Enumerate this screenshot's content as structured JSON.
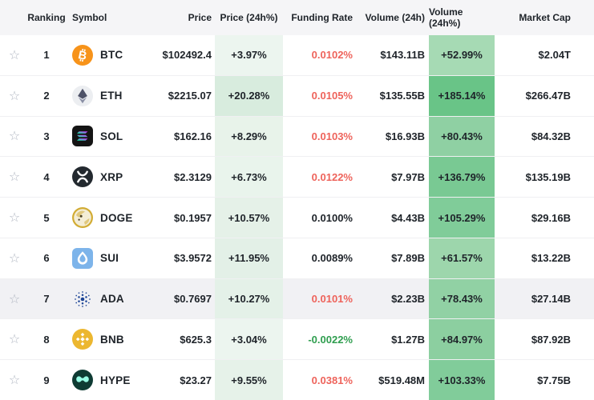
{
  "table": {
    "columns": [
      {
        "key": "favorite",
        "label": ""
      },
      {
        "key": "ranking",
        "label": "Ranking"
      },
      {
        "key": "symbol",
        "label": "Symbol"
      },
      {
        "key": "price",
        "label": "Price"
      },
      {
        "key": "price_change",
        "label": "Price (24h%)"
      },
      {
        "key": "funding_rate",
        "label": "Funding Rate"
      },
      {
        "key": "volume",
        "label": "Volume (24h)"
      },
      {
        "key": "volume_change",
        "label": "Volume (24h%)"
      },
      {
        "key": "market_cap",
        "label": "Market Cap"
      }
    ],
    "rows": [
      {
        "ranking": "1",
        "symbol": "BTC",
        "icon": "btc",
        "price": "$102492.4",
        "price_change": "+3.97%",
        "price_change_bg": "#ecf5ef",
        "funding_rate": "0.0102%",
        "funding_color": "#ee635b",
        "volume": "$143.11B",
        "volume_change": "+52.99%",
        "volume_change_bg": "#a6dab4",
        "market_cap": "$2.04T",
        "row_bg": "#ffffff"
      },
      {
        "ranking": "2",
        "symbol": "ETH",
        "icon": "eth",
        "price": "$2215.07",
        "price_change": "+20.28%",
        "price_change_bg": "#d8ecde",
        "funding_rate": "0.0105%",
        "funding_color": "#ee635b",
        "volume": "$135.55B",
        "volume_change": "+185.14%",
        "volume_change_bg": "#69c487",
        "market_cap": "$266.47B",
        "row_bg": "#ffffff"
      },
      {
        "ranking": "3",
        "symbol": "SOL",
        "icon": "sol",
        "price": "$162.16",
        "price_change": "+8.29%",
        "price_change_bg": "#e8f3ea",
        "funding_rate": "0.0103%",
        "funding_color": "#ee635b",
        "volume": "$16.93B",
        "volume_change": "+80.43%",
        "volume_change_bg": "#8fd0a3",
        "market_cap": "$84.32B",
        "row_bg": "#ffffff"
      },
      {
        "ranking": "4",
        "symbol": "XRP",
        "icon": "xrp",
        "price": "$2.3129",
        "price_change": "+6.73%",
        "price_change_bg": "#e9f4ec",
        "funding_rate": "0.0122%",
        "funding_color": "#ee635b",
        "volume": "$7.97B",
        "volume_change": "+136.79%",
        "volume_change_bg": "#79c993",
        "market_cap": "$135.19B",
        "row_bg": "#ffffff"
      },
      {
        "ranking": "5",
        "symbol": "DOGE",
        "icon": "doge",
        "price": "$0.1957",
        "price_change": "+10.57%",
        "price_change_bg": "#e5f1e8",
        "funding_rate": "0.0100%",
        "funding_color": "#1e2329",
        "volume": "$4.43B",
        "volume_change": "+105.29%",
        "volume_change_bg": "#80cc99",
        "market_cap": "$29.16B",
        "row_bg": "#ffffff"
      },
      {
        "ranking": "6",
        "symbol": "SUI",
        "icon": "sui",
        "price": "$3.9572",
        "price_change": "+11.95%",
        "price_change_bg": "#e3f0e7",
        "funding_rate": "0.0089%",
        "funding_color": "#1e2329",
        "volume": "$7.89B",
        "volume_change": "+61.57%",
        "volume_change_bg": "#9dd6ac",
        "market_cap": "$13.22B",
        "row_bg": "#ffffff"
      },
      {
        "ranking": "7",
        "symbol": "ADA",
        "icon": "ada",
        "price": "$0.7697",
        "price_change": "+10.27%",
        "price_change_bg": "#e4f1e8",
        "funding_rate": "0.0101%",
        "funding_color": "#ee635b",
        "volume": "$2.23B",
        "volume_change": "+78.43%",
        "volume_change_bg": "#91d1a4",
        "market_cap": "$27.14B",
        "row_bg": "#f1f1f4"
      },
      {
        "ranking": "8",
        "symbol": "BNB",
        "icon": "bnb",
        "price": "$625.3",
        "price_change": "+3.04%",
        "price_change_bg": "#ecf5ef",
        "funding_rate": "-0.0022%",
        "funding_color": "#2f9e4f",
        "volume": "$1.27B",
        "volume_change": "+84.97%",
        "volume_change_bg": "#8ccfa0",
        "market_cap": "$87.92B",
        "row_bg": "#ffffff"
      },
      {
        "ranking": "9",
        "symbol": "HYPE",
        "icon": "hype",
        "price": "$23.27",
        "price_change": "+9.55%",
        "price_change_bg": "#e6f2e9",
        "funding_rate": "0.0381%",
        "funding_color": "#ee635b",
        "volume": "$519.48M",
        "volume_change": "+103.33%",
        "volume_change_bg": "#81cc9a",
        "market_cap": "$7.75B",
        "row_bg": "#ffffff"
      }
    ]
  },
  "icons": {
    "favorite_star": "☆"
  },
  "colors": {
    "header_bg": "#f5f5f7",
    "row_bg": "#ffffff",
    "row_highlight_bg": "#f1f1f4",
    "divider": "#f0f0f2",
    "text": "#1e2329",
    "negative_red": "#ee635b",
    "positive_green": "#2f9e4f",
    "star": "#b0b6c1"
  },
  "coin_colors": {
    "btc_bg": "#f7931a",
    "eth_bg": "#eceef1",
    "eth_dark": "#4e5268",
    "eth_light": "#8a8fa5",
    "sol_bg": "#141414",
    "sol_grad_a": "#00ffa3",
    "sol_grad_b": "#dc1fff",
    "xrp_bg": "#23292f",
    "doge_bg": "#f4edd6",
    "doge_ring": "#d2ac34",
    "doge_patch": "#e0c87e",
    "doge_dark": "#4a3f22",
    "sui_bg": "#7db4ea",
    "ada_blue": "#1d4596",
    "bnb_bg": "#ecb730",
    "hype_bg": "#0e3b33",
    "hype_mint": "#97fce4",
    "white": "#ffffff"
  }
}
